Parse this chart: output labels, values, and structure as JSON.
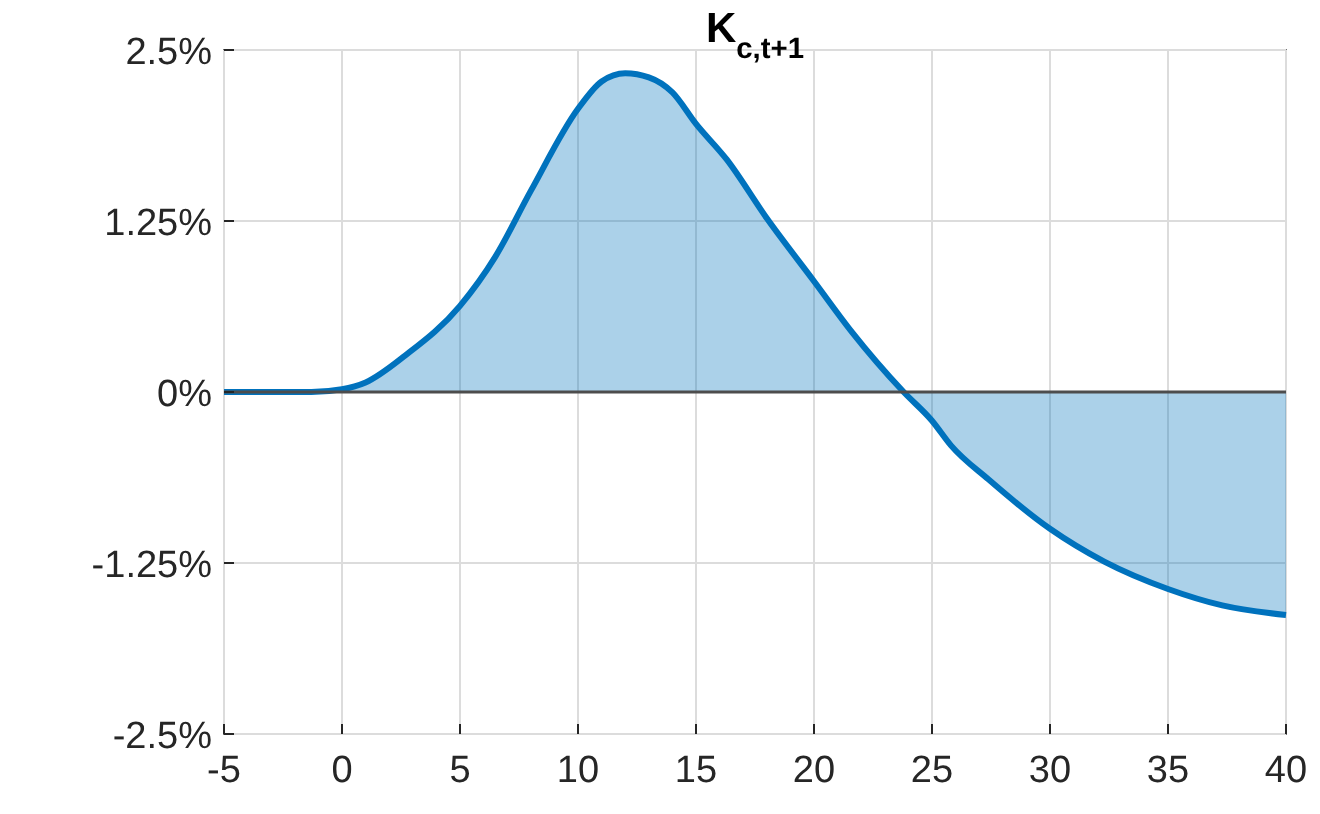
{
  "chart_data": {
    "type": "area",
    "title": "K$_{c,t+1}$",
    "x": [
      -5,
      -1.3,
      0,
      1,
      2.7,
      5,
      6.5,
      8,
      10,
      11,
      12,
      13,
      14,
      15,
      16.3,
      18,
      20,
      21.6,
      23.8,
      25,
      25.8,
      27.4,
      30,
      32.3,
      35,
      37.3,
      40
    ],
    "series": [
      {
        "color": "#0072bd",
        "values": [
          0,
          0,
          0.02,
          0.07,
          0.27,
          0.63,
          0.99,
          1.47,
          2.07,
          2.27,
          2.33,
          2.3,
          2.19,
          1.96,
          1.7,
          1.27,
          0.81,
          0.44,
          0,
          -0.21,
          -0.39,
          -0.64,
          -1.0,
          -1.24,
          -1.44,
          -1.56,
          -1.63
        ]
      }
    ],
    "xlim": [
      -5,
      40
    ],
    "xticks": [
      -5,
      0,
      5,
      10,
      15,
      20,
      25,
      30,
      35,
      40
    ],
    "ylim": [
      -2.5,
      2.5
    ],
    "yticks": [
      {
        "value": -2.5,
        "label": "-2.5%"
      },
      {
        "value": -1.25,
        "label": "-1.25%"
      },
      {
        "value": 0,
        "label": "0%"
      },
      {
        "value": 1.25,
        "label": "1.25%"
      },
      {
        "value": 2.5,
        "label": "2.5%"
      }
    ],
    "ref_lines": [
      {
        "axis": "y",
        "value": 0,
        "color": "#4d4d4d"
      }
    ],
    "grid": true
  }
}
